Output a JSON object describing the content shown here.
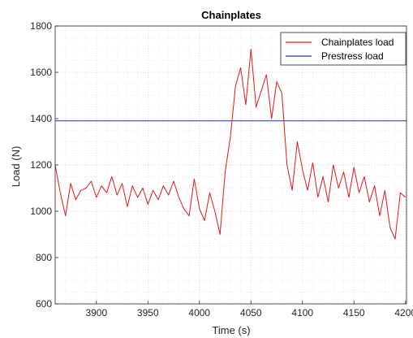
{
  "chart_data": {
    "type": "line",
    "title": "Chainplates",
    "xlabel": "Time (s)",
    "ylabel": "Load (N)",
    "xlim": [
      3860,
      4201
    ],
    "ylim": [
      600,
      1800
    ],
    "xticks": [
      3900,
      3950,
      4000,
      4050,
      4100,
      4150,
      4200
    ],
    "yticks": [
      600,
      800,
      1000,
      1200,
      1400,
      1600,
      1800
    ],
    "grid": true,
    "minor_grid": true,
    "legend_position": "top-right",
    "series": [
      {
        "name": "Chainplates load",
        "color": "#e8161b",
        "x": [
          3860,
          3865,
          3870,
          3875,
          3880,
          3885,
          3890,
          3895,
          3900,
          3905,
          3910,
          3915,
          3920,
          3925,
          3930,
          3935,
          3940,
          3945,
          3950,
          3955,
          3960,
          3965,
          3970,
          3975,
          3980,
          3985,
          3990,
          3995,
          4000,
          4005,
          4010,
          4015,
          4020,
          4025,
          4030,
          4035,
          4040,
          4045,
          4050,
          4055,
          4060,
          4065,
          4070,
          4075,
          4080,
          4085,
          4090,
          4095,
          4100,
          4105,
          4110,
          4115,
          4120,
          4125,
          4130,
          4135,
          4140,
          4145,
          4150,
          4155,
          4160,
          4165,
          4170,
          4175,
          4180,
          4185,
          4190,
          4195,
          4200
        ],
        "y": [
          1200,
          1080,
          980,
          1120,
          1050,
          1090,
          1100,
          1130,
          1060,
          1110,
          1080,
          1150,
          1070,
          1120,
          1020,
          1110,
          1060,
          1100,
          1030,
          1090,
          1050,
          1110,
          1070,
          1130,
          1060,
          1010,
          980,
          1140,
          1010,
          960,
          1080,
          1000,
          900,
          1170,
          1320,
          1540,
          1620,
          1460,
          1700,
          1450,
          1520,
          1590,
          1400,
          1560,
          1510,
          1200,
          1090,
          1300,
          1180,
          1090,
          1210,
          1060,
          1150,
          1040,
          1200,
          1100,
          1170,
          1060,
          1190,
          1080,
          1150,
          1040,
          1110,
          980,
          1090,
          930,
          880,
          1080,
          1060
        ]
      },
      {
        "name": "Prestress load",
        "color": "#1f39a8",
        "x": [
          3860,
          4201
        ],
        "y": [
          1390,
          1390
        ]
      }
    ]
  }
}
